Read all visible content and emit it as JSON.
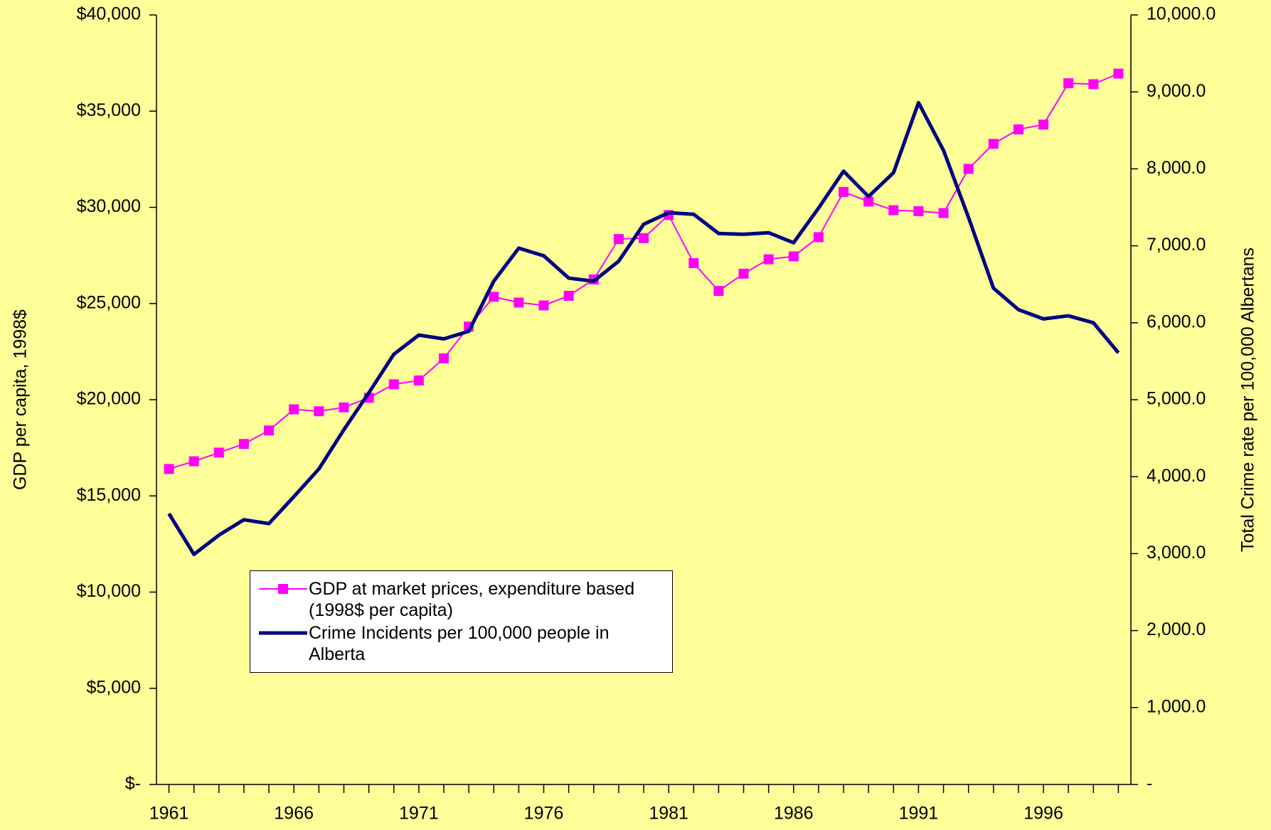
{
  "chart_data": {
    "type": "line",
    "categories": [
      "1961",
      null,
      null,
      null,
      null,
      "1966",
      null,
      null,
      null,
      null,
      "1971",
      null,
      null,
      null,
      null,
      "1976",
      null,
      null,
      null,
      null,
      "1981",
      null,
      null,
      null,
      null,
      "1986",
      null,
      null,
      null,
      null,
      "1991",
      null,
      null,
      null,
      null,
      "1996",
      null,
      null,
      null
    ],
    "series": [
      {
        "name": "GDP at market prices, expenditure based (1998$ per capita)",
        "color": "#ff00ff",
        "marker": "square",
        "values": [
          16400,
          16800,
          17250,
          17700,
          18400,
          19500,
          19400,
          19600,
          20100,
          20800,
          21000,
          22150,
          23800,
          25350,
          25050,
          24900,
          25400,
          26250,
          28350,
          28400,
          29600,
          27100,
          25650,
          26550,
          27300,
          27450,
          28450,
          30800,
          30300,
          29850,
          29800,
          29700,
          32000,
          33300,
          34050,
          34300,
          36450,
          36400,
          36950
        ]
      },
      {
        "name": "Crime Incidents per 100,000 people in Alberta",
        "color": "#000080",
        "axis": "y2",
        "values": [
          3520,
          2990,
          3240,
          3440,
          3390,
          3740,
          4100,
          4610,
          5090,
          5590,
          5840,
          5790,
          5890,
          6540,
          6970,
          6870,
          6580,
          6540,
          6800,
          7280,
          7430,
          7410,
          7160,
          7150,
          7170,
          7040,
          7490,
          7970,
          7640,
          7950,
          8860,
          8240,
          7370,
          6450,
          6170,
          6050,
          6090,
          6000,
          5610
        ]
      }
    ],
    "ylabel": "GDP per capita, 1998$",
    "y2label": "Total Crime rate per 100,000 Albertans",
    "ylim": [
      0,
      40000
    ],
    "yticks": [
      {
        "value": 0,
        "label": "$-"
      },
      {
        "value": 5000,
        "label": "$5,000"
      },
      {
        "value": 10000,
        "label": "$10,000"
      },
      {
        "value": 15000,
        "label": "$15,000"
      },
      {
        "value": 20000,
        "label": "$20,000"
      },
      {
        "value": 25000,
        "label": "$25,000"
      },
      {
        "value": 30000,
        "label": "$30,000"
      },
      {
        "value": 35000,
        "label": "$35,000"
      },
      {
        "value": 40000,
        "label": "$40,000"
      }
    ],
    "y2lim": [
      0,
      10000
    ],
    "y2ticks": [
      {
        "value": 0,
        "label": "-"
      },
      {
        "value": 1000,
        "label": "1,000.0"
      },
      {
        "value": 2000,
        "label": "2,000.0"
      },
      {
        "value": 3000,
        "label": "3,000.0"
      },
      {
        "value": 4000,
        "label": "4,000.0"
      },
      {
        "value": 5000,
        "label": "5,000.0"
      },
      {
        "value": 6000,
        "label": "6,000.0"
      },
      {
        "value": 7000,
        "label": "7,000.0"
      },
      {
        "value": 8000,
        "label": "8,000.0"
      },
      {
        "value": 9000,
        "label": "9,000.0"
      },
      {
        "value": 10000,
        "label": "10,000.0"
      }
    ],
    "legend": "lower left",
    "grid": false
  }
}
